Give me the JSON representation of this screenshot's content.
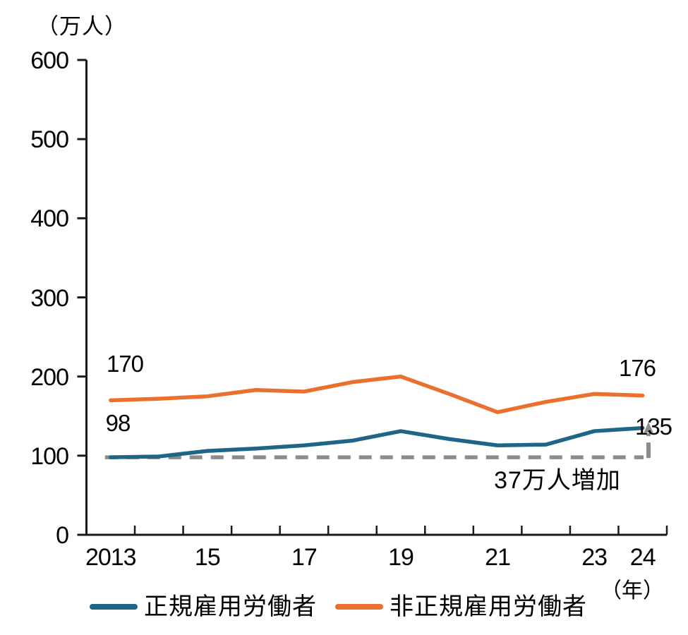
{
  "chart_data": {
    "type": "line",
    "title": "",
    "grid": false,
    "legend_position": "bottom",
    "axis_color": "#1A1A1A",
    "text_color": "#000000",
    "background_color": "#FFFFFF",
    "y_axis": {
      "unit": "（万人）",
      "ticks": [
        600,
        500,
        400,
        300,
        200,
        100,
        0
      ],
      "ylim": [
        0,
        600
      ]
    },
    "x_axis": {
      "unit": "（年）",
      "tick_labels": [
        {
          "text": "2013",
          "year": 2013
        },
        {
          "text": "15",
          "year": 2015
        },
        {
          "text": "17",
          "year": 2017
        },
        {
          "text": "19",
          "year": 2019
        },
        {
          "text": "21",
          "year": 2021
        },
        {
          "text": "23",
          "year": 2023
        },
        {
          "text": "24",
          "year": 2024
        }
      ]
    },
    "years": [
      2013,
      2014,
      2015,
      2016,
      2017,
      2018,
      2019,
      2020,
      2021,
      2022,
      2023,
      2024
    ],
    "series": [
      {
        "name": "正規雇用労働者",
        "color": "#1F6588",
        "values": [
          98,
          99,
          106,
          109,
          113,
          119,
          131,
          121,
          113,
          114,
          131,
          135
        ],
        "first_point_label": "98",
        "last_point_label": "135"
      },
      {
        "name": "非正規雇用労働者",
        "color": "#EB702E",
        "values": [
          170,
          172,
          175,
          183,
          181,
          193,
          200,
          178,
          155,
          168,
          178,
          176
        ],
        "first_point_label": "170",
        "last_point_label": "176"
      }
    ],
    "reference_line": {
      "value": 98,
      "color": "#8C8C8C",
      "style": "dashed"
    },
    "increase_indicator": {
      "from": 98,
      "to": 135,
      "label": "37万人増加",
      "color": "#8C8C8C"
    }
  }
}
